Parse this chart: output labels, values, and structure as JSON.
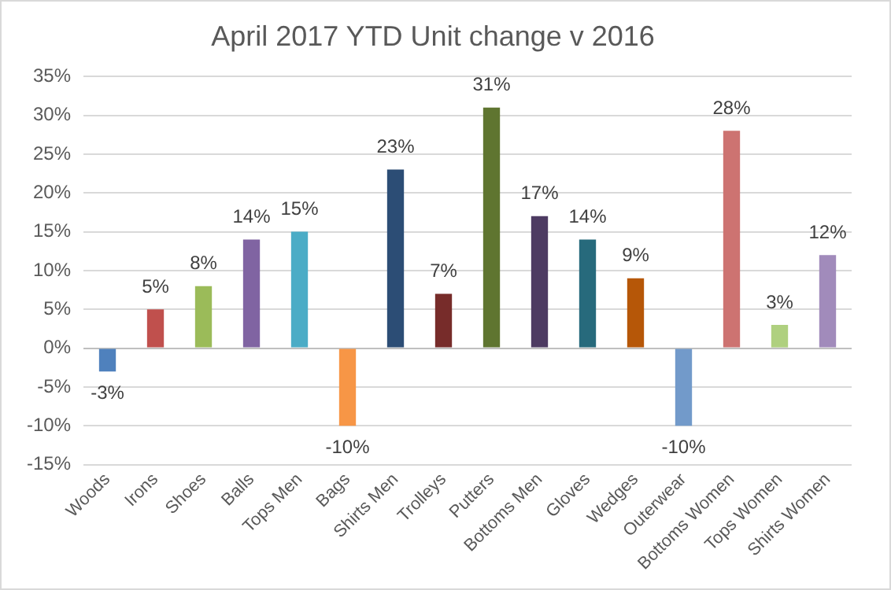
{
  "chart_data": {
    "type": "bar",
    "title": "April 2017 YTD Unit change v 2016",
    "categories": [
      "Woods",
      "Irons",
      "Shoes",
      "Balls",
      "Tops Men",
      "Bags",
      "Shirts Men",
      "Trolleys",
      "Putters",
      "Bottoms Men",
      "Gloves",
      "Wedges",
      "Outerwear",
      "Bottoms Women",
      "Tops Women",
      "Shirts Women"
    ],
    "values": [
      -3,
      5,
      8,
      14,
      15,
      -10,
      23,
      7,
      31,
      17,
      14,
      9,
      -10,
      28,
      3,
      12
    ],
    "value_labels": [
      "-3%",
      "5%",
      "8%",
      "14%",
      "15%",
      "-10%",
      "23%",
      "7%",
      "31%",
      "17%",
      "14%",
      "9%",
      "-10%",
      "28%",
      "3%",
      "12%"
    ],
    "colors": [
      "#4f81bd",
      "#c0504d",
      "#9bbb59",
      "#8064a2",
      "#4bacc6",
      "#f79646",
      "#2c4d75",
      "#772c2a",
      "#5f7530",
      "#4d3b62",
      "#276a7c",
      "#b65708",
      "#729aca",
      "#cd7371",
      "#afd07f",
      "#a18bbb"
    ],
    "ylim": [
      -15,
      35
    ],
    "yticks": [
      {
        "value": -15,
        "label": "-15%"
      },
      {
        "value": -10,
        "label": "-10%"
      },
      {
        "value": -5,
        "label": "-5%"
      },
      {
        "value": 0,
        "label": "0%"
      },
      {
        "value": 5,
        "label": "5%"
      },
      {
        "value": 10,
        "label": "10%"
      },
      {
        "value": 15,
        "label": "15%"
      },
      {
        "value": 20,
        "label": "20%"
      },
      {
        "value": 25,
        "label": "25%"
      },
      {
        "value": 30,
        "label": "30%"
      },
      {
        "value": 35,
        "label": "35%"
      }
    ],
    "grid": "y",
    "legend": false
  }
}
